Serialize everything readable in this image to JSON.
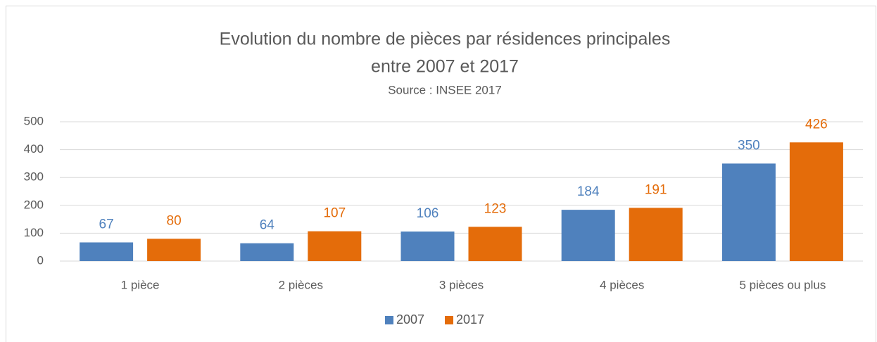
{
  "chart_data": {
    "type": "bar",
    "title": [
      "Evolution du nombre de pièces par résidences principales",
      "entre 2007 et 2017"
    ],
    "subtitle": "Source : INSEE 2017",
    "categories": [
      "1 pièce",
      "2 pièces",
      "3 pièces",
      "4 pièces",
      "5 pièces ou plus"
    ],
    "series": [
      {
        "name": "2007",
        "color": "#4f81bd",
        "values": [
          67,
          64,
          106,
          184,
          350
        ]
      },
      {
        "name": "2017",
        "color": "#e46c0a",
        "values": [
          80,
          107,
          123,
          191,
          426
        ]
      }
    ],
    "ylim": [
      0,
      500
    ],
    "yticks": [
      0,
      100,
      200,
      300,
      400,
      500
    ],
    "grid": true,
    "legend": "bottom"
  }
}
